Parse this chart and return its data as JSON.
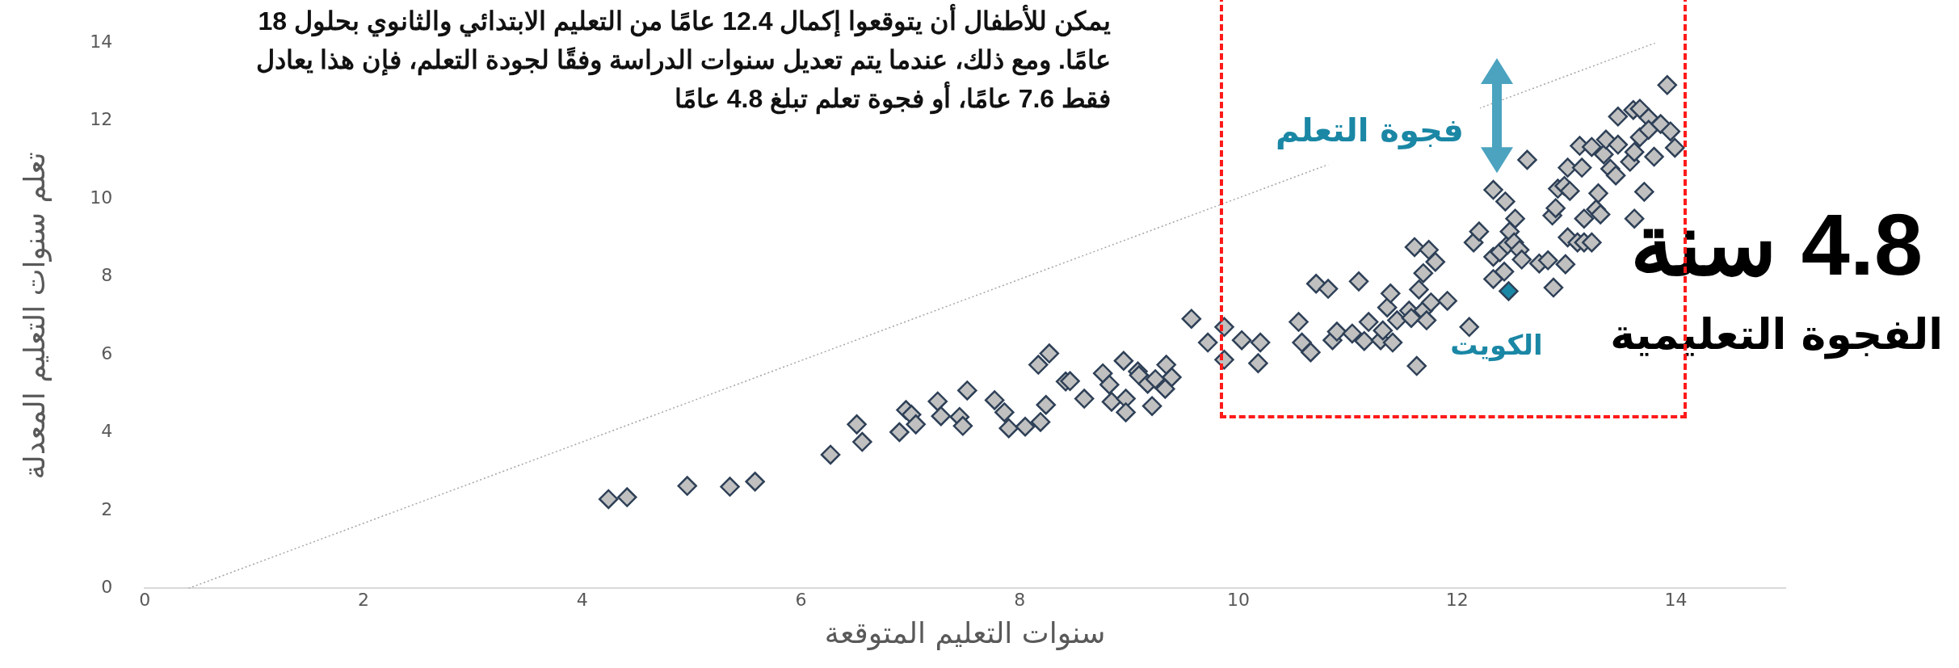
{
  "chart_data": {
    "type": "scatter",
    "xlabel": "سنوات التعليم المتوقعة",
    "ylabel": "تعلم سنوات التعليم المعدلة",
    "xlim": [
      0,
      15
    ],
    "xticks": [
      0,
      2,
      4,
      6,
      8,
      10,
      12,
      14
    ],
    "ylim": [
      0,
      14
    ],
    "yticks": [
      0,
      2,
      4,
      6,
      8,
      10,
      12,
      14
    ],
    "grid": false,
    "legend": false,
    "marker": "diamond",
    "series": [
      {
        "color": "#c0c0c0",
        "x": [
          4.24,
          4.41,
          4.96,
          5.35,
          5.58,
          6.27,
          6.51,
          6.56,
          6.9,
          6.96,
          7.01,
          7.05,
          7.25,
          7.28,
          7.45,
          7.48,
          7.52,
          7.77,
          7.86,
          7.9,
          8.05,
          8.19,
          8.24,
          8.17,
          8.27,
          8.42,
          8.46,
          8.59,
          8.76,
          8.82,
          8.84,
          8.95,
          8.97,
          8.97,
          9.08,
          9.09,
          9.17,
          9.24,
          9.21,
          9.34,
          9.39,
          9.33,
          9.57,
          9.72,
          9.87,
          9.87,
          10.03,
          10.2,
          10.18,
          10.55,
          10.58,
          10.66,
          10.71,
          10.82,
          10.86,
          10.9,
          11.04,
          11.1,
          11.15,
          11.19,
          11.3,
          11.32,
          11.36,
          11.39,
          11.41,
          11.45,
          11.56,
          11.58,
          11.61,
          11.63,
          11.65,
          11.69,
          11.69,
          11.72,
          11.74,
          11.76,
          11.8,
          11.91,
          12.11,
          12.15,
          12.2,
          12.33,
          12.33,
          12.33,
          12.39,
          12.43,
          12.44,
          12.46,
          12.48,
          12.52,
          12.53,
          12.57,
          12.59,
          12.64,
          12.75,
          12.83,
          12.87,
          12.88,
          12.9,
          12.92,
          12.98,
          12.99,
          13.01,
          13.01,
          13.03,
          13.1,
          13.12,
          13.14,
          13.16,
          13.16,
          13.23,
          13.23,
          13.27,
          13.29,
          13.31,
          13.34,
          13.36,
          13.4,
          13.45,
          13.47,
          13.47,
          13.58,
          13.61,
          13.62,
          13.62,
          13.67,
          13.67,
          13.71,
          13.75,
          13.75,
          13.8,
          13.86,
          13.92,
          13.95,
          13.99
        ],
        "values": [
          2.29,
          2.34,
          2.63,
          2.61,
          2.74,
          3.43,
          4.21,
          3.76,
          4.01,
          4.58,
          4.46,
          4.21,
          4.8,
          4.42,
          4.4,
          4.17,
          5.08,
          4.83,
          4.52,
          4.11,
          4.15,
          4.27,
          4.71,
          5.74,
          6.03,
          5.31,
          5.32,
          4.87,
          5.52,
          5.23,
          4.79,
          5.84,
          4.87,
          4.52,
          5.57,
          5.47,
          5.25,
          5.37,
          4.68,
          5.74,
          5.42,
          5.12,
          6.92,
          6.31,
          6.71,
          5.87,
          6.37,
          6.31,
          5.78,
          6.84,
          6.31,
          6.06,
          7.82,
          7.69,
          6.37,
          6.59,
          6.54,
          7.88,
          6.35,
          6.84,
          6.37,
          6.62,
          7.21,
          7.57,
          6.31,
          6.88,
          7.13,
          6.94,
          8.76,
          5.71,
          7.67,
          7.13,
          8.09,
          6.88,
          8.69,
          7.34,
          8.38,
          7.38,
          6.71,
          8.88,
          9.16,
          10.23,
          8.51,
          7.94,
          8.63,
          8.13,
          9.93,
          8.82,
          9.16,
          8.88,
          9.49,
          8.69,
          8.44,
          11.0,
          8.34,
          8.42,
          9.57,
          7.72,
          9.76,
          10.26,
          10.33,
          8.32,
          10.8,
          9.01,
          10.2,
          8.88,
          11.36,
          10.8,
          9.49,
          8.88,
          11.33,
          8.88,
          9.73,
          10.14,
          9.6,
          11.14,
          11.52,
          10.77,
          10.6,
          12.11,
          11.39,
          10.95,
          12.28,
          11.2,
          9.49,
          12.31,
          11.58,
          10.18,
          12.08,
          11.77,
          11.08,
          11.92,
          12.92,
          11.73,
          11.31
        ]
      },
      {
        "color": "#1a87a5",
        "x": [
          12.47
        ],
        "values": [
          7.63
        ]
      },
      {
        "type": "line",
        "color": "#a6a6a6",
        "line_style": "dotted",
        "marker": "none",
        "x": [
          0.4,
          13.81
        ],
        "values": [
          0,
          14
        ]
      }
    ],
    "annotations": [
      "يمكن للأطفال أن يتوقعوا إكمال 12.4 عامًا من التعليم الابتدائي والثانوي بحلول 18 عامًا. ومع ذلك، عندما يتم تعديل سنوات الدراسة وفقًا لجودة التعلم، فإن هذا يعادل فقط 7.6 عامًا، أو فجوة تعلم تبلغ 4.8 عامًا",
      "فجوة التعلم",
      {
        "text": "الكويت",
        "x": 12.47,
        "y": 7.63
      },
      "4.8 سنة",
      "الفجوة التعليمية"
    ]
  }
}
